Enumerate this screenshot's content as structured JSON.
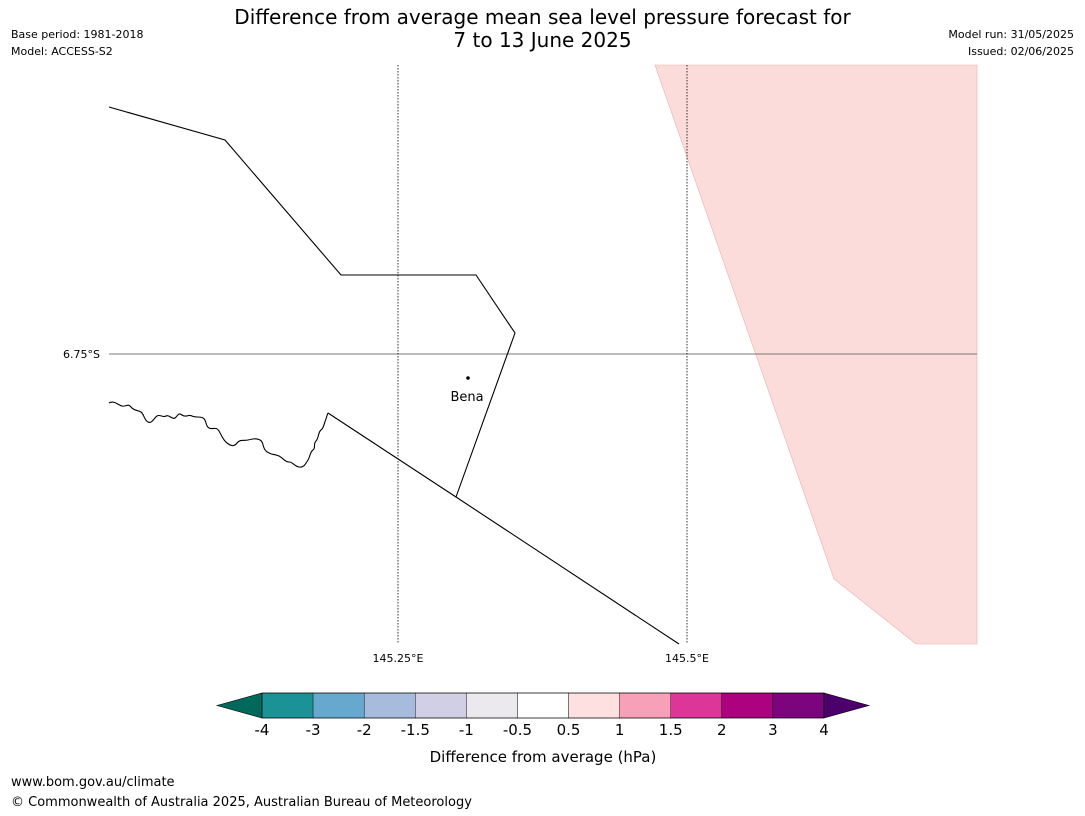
{
  "header": {
    "base_period": "Base period: 1981-2018",
    "model": "Model: ACCESS-S2",
    "title_line1": "Difference from average mean sea level pressure forecast for",
    "title_line2": "7 to 13 June 2025",
    "model_run": "Model run: 31/05/2025",
    "issued": "Issued: 02/06/2025"
  },
  "map": {
    "lat_label": "6.75°S",
    "lon_labels": [
      "145.25°E",
      "145.5°E"
    ],
    "place_name": "Bena",
    "anomaly_region_color": "#fcdcda"
  },
  "colorbar": {
    "title": "Difference from average (hPa)",
    "tick_labels": [
      "-4",
      "-3",
      "-2",
      "-1.5",
      "-1",
      "-0.5",
      "0.5",
      "1",
      "1.5",
      "2",
      "3",
      "4"
    ],
    "colors": [
      "#1b9296",
      "#67a8ce",
      "#a7bcdd",
      "#d1cfe5",
      "#ebe9ed",
      "#ffffff",
      "#fde0df",
      "#f8a0b8",
      "#db3698",
      "#ac0280",
      "#7c047c"
    ],
    "extend_low_color": "#00695c",
    "extend_high_color": "#4c006b"
  },
  "footer": {
    "url": "www.bom.gov.au/climate",
    "copyright": "© Commonwealth of Australia 2025, Australian Bureau of Meteorology"
  }
}
